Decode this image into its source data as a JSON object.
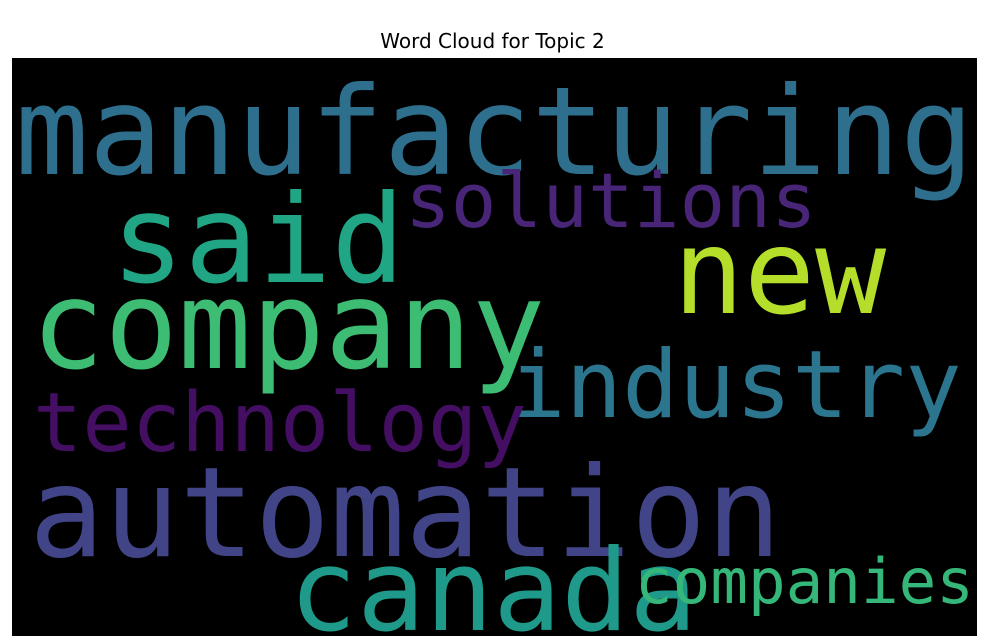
{
  "chart_data": {
    "type": "wordcloud",
    "title": "Word Cloud for Topic 2",
    "words": [
      {
        "text": "manufacturing",
        "color": "#2e6f8e"
      },
      {
        "text": "said",
        "color": "#21a685"
      },
      {
        "text": "solutions",
        "color": "#482576"
      },
      {
        "text": "new",
        "color": "#b5de2b"
      },
      {
        "text": "company",
        "color": "#3dbc74"
      },
      {
        "text": "industry",
        "color": "#2b758e"
      },
      {
        "text": "technology",
        "color": "#440f63"
      },
      {
        "text": "automation",
        "color": "#414487"
      },
      {
        "text": "canada",
        "color": "#1f9a8a"
      },
      {
        "text": "companies",
        "color": "#35b779"
      }
    ]
  }
}
